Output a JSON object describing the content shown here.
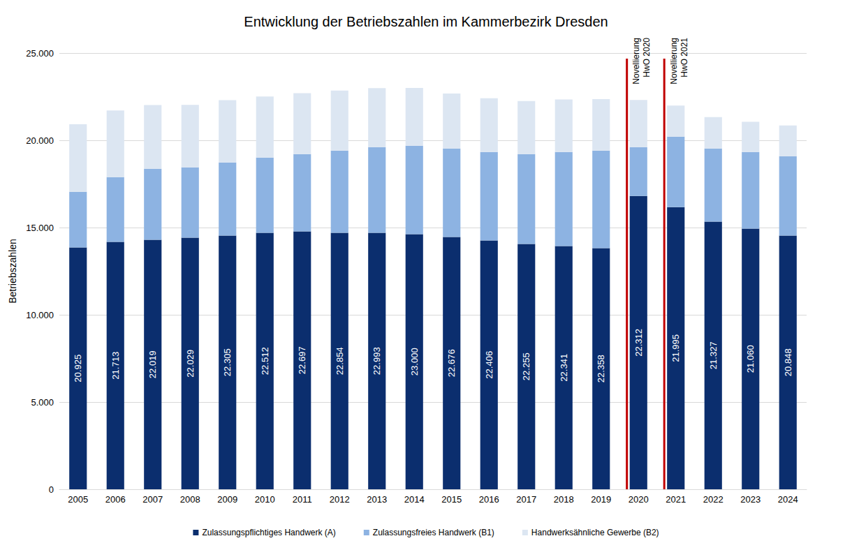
{
  "chart_data": {
    "type": "bar",
    "title": "Entwicklung der Betriebszahlen im Kammerbezirk Dresden",
    "y_label": "Betriebszahlen",
    "categories": [
      "2005",
      "2006",
      "2007",
      "2008",
      "2009",
      "2010",
      "2011",
      "2012",
      "2013",
      "2014",
      "2015",
      "2016",
      "2017",
      "2018",
      "2019",
      "2020",
      "2021",
      "2022",
      "2023",
      "2024"
    ],
    "series": [
      {
        "name": "Zulassungspflichtiges Handwerk (A)",
        "color": "#0b2e6e",
        "values": [
          13860,
          14180,
          14300,
          14420,
          14540,
          14700,
          14780,
          14700,
          14700,
          14620,
          14460,
          14260,
          14060,
          13940,
          13820,
          16810,
          16170,
          15340,
          14940,
          14540
        ]
      },
      {
        "name": "Zulassungsfreies Handwerk (B1)",
        "color": "#8db3e2",
        "values": [
          3190,
          3710,
          4070,
          4030,
          4190,
          4310,
          4430,
          4710,
          4910,
          5070,
          5070,
          5070,
          5150,
          5390,
          5590,
          2800,
          4040,
          4190,
          4390,
          4550
        ]
      },
      {
        "name": "Handwerksähnliche Gewerbe (B2)",
        "color": "#dce6f2",
        "values": [
          3875,
          3823,
          3649,
          3579,
          3575,
          3502,
          3487,
          3444,
          3383,
          3310,
          3146,
          3076,
          3045,
          3011,
          2948,
          2702,
          1785,
          1797,
          1730,
          1758
        ]
      }
    ],
    "totals": [
      20925,
      21713,
      22019,
      22029,
      22305,
      22512,
      22697,
      22854,
      22993,
      23000,
      22676,
      22406,
      22255,
      22341,
      22358,
      22312,
      21995,
      21327,
      21060,
      20848
    ],
    "total_labels": [
      "20.925",
      "21.713",
      "22.019",
      "22.029",
      "22.305",
      "22.512",
      "22.697",
      "22.854",
      "22.993",
      "23.000",
      "22.676",
      "22.406",
      "22.255",
      "22.341",
      "22.358",
      "22.312",
      "21.995",
      "21.327",
      "21.060",
      "20.848"
    ],
    "annotations": [
      {
        "text": "Novellierung HwO 2020",
        "x": "2020",
        "color": "#c00000"
      },
      {
        "text": "Novellierung HwO 2021",
        "x": "2021",
        "color": "#c00000"
      }
    ],
    "ylim": [
      0,
      25000
    ],
    "yticks": [
      0,
      {
        "value": 5000,
        "label": "5.000"
      },
      {
        "value": 10000,
        "label": "10.000"
      },
      {
        "value": 15000,
        "label": "15.000"
      },
      {
        "value": 20000,
        "label": "20.000"
      },
      {
        "value": 25000,
        "label": "25.000"
      }
    ],
    "stacked": true,
    "grid": true,
    "legend": "bottom",
    "data_labels": true
  }
}
